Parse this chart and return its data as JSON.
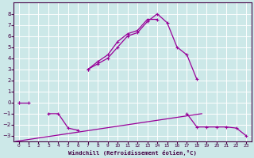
{
  "xlabel": "Windchill (Refroidissement éolien,°C)",
  "bg_color": "#cce8e8",
  "grid_color": "#ffffff",
  "line_color": "#990099",
  "xlim": [
    -0.5,
    23.5
  ],
  "ylim": [
    -3.5,
    9.0
  ],
  "xticks": [
    0,
    1,
    2,
    3,
    4,
    5,
    6,
    7,
    8,
    9,
    10,
    11,
    12,
    13,
    14,
    15,
    16,
    17,
    18,
    19,
    20,
    21,
    22,
    23
  ],
  "yticks": [
    -3,
    -2,
    -1,
    0,
    1,
    2,
    3,
    4,
    5,
    6,
    7,
    8
  ],
  "hours": [
    0,
    1,
    2,
    3,
    4,
    5,
    6,
    7,
    8,
    9,
    10,
    11,
    12,
    13,
    14,
    15,
    16,
    17,
    18,
    19,
    20,
    21,
    22,
    23
  ],
  "line1": [
    0,
    0,
    null,
    null,
    null,
    null,
    null,
    3.0,
    3.5,
    4.0,
    5.0,
    6.0,
    6.3,
    7.3,
    8.0,
    7.2,
    5.0,
    4.3,
    2.1,
    null,
    null,
    null,
    null,
    null
  ],
  "line2": [
    null,
    null,
    null,
    -1.0,
    -1.0,
    -2.3,
    -2.5,
    null,
    null,
    null,
    null,
    null,
    null,
    null,
    null,
    null,
    null,
    -1.0,
    -2.2,
    -2.2,
    -2.2,
    -2.2,
    -2.3,
    -3.0
  ],
  "line3": [
    0.0,
    null,
    null,
    null,
    null,
    null,
    null,
    3.0,
    3.7,
    4.3,
    5.5,
    6.2,
    6.5,
    7.5,
    7.5,
    null,
    null,
    null,
    null,
    null,
    null,
    null,
    null,
    null
  ],
  "diag_line": [
    [
      -0.3,
      18.5
    ],
    [
      -3.5,
      -1.0
    ]
  ]
}
